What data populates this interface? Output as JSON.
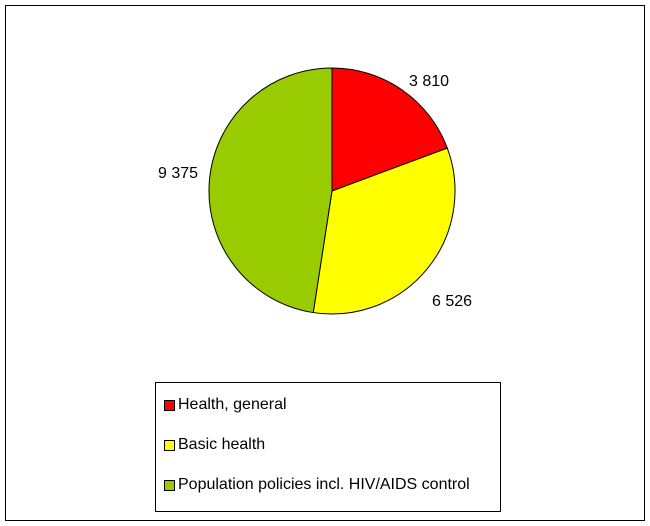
{
  "chart_data": {
    "type": "pie",
    "title": "",
    "slices": [
      {
        "label": "Health, general",
        "value": 3810,
        "value_label": "3 810",
        "color": "#ff0000"
      },
      {
        "label": "Basic health",
        "value": 6526,
        "value_label": "6 526",
        "color": "#ffff00"
      },
      {
        "label": "Population policies incl. HIV/AIDS control",
        "value": 9375,
        "value_label": "9 375",
        "color": "#99cc00"
      }
    ],
    "legend_position": "bottom"
  }
}
